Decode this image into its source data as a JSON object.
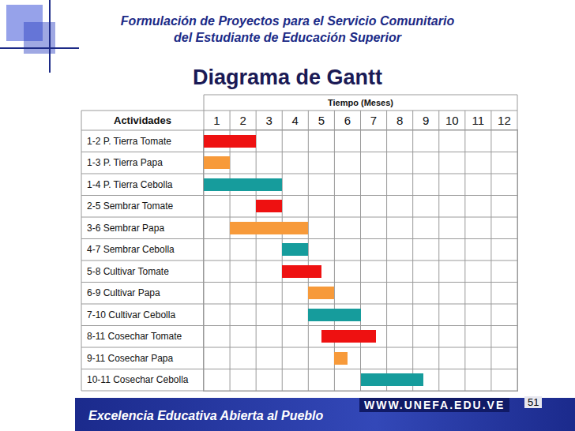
{
  "header": {
    "lines": [
      "Formulación de Proyectos para el Servicio Comunitario",
      "del Estudiante de Educación Superior"
    ]
  },
  "chart_data": {
    "type": "bar",
    "orientation": "horizontal",
    "title": "Diagrama de Gantt",
    "x_label": "Tiempo (Meses)",
    "category_header": "Actividades",
    "categories": [
      "1-2 P. Tierra Tomate",
      "1-3 P. Tierra Papa",
      "1-4 P. Tierra Cebolla",
      "2-5 Sembrar Tomate",
      "3-6 Sembrar Papa",
      "4-7 Sembrar Cebolla",
      "5-8 Cultivar Tomate",
      "6-9 Cultivar Papa",
      "7-10 Cultivar Cebolla",
      "8-11 Cosechar Tomate",
      "9-11 Cosechar Papa",
      "10-11 Cosechar Cebolla"
    ],
    "start": [
      0,
      0,
      0,
      2,
      1,
      3,
      3,
      4,
      4,
      4.5,
      5,
      6
    ],
    "end": [
      2,
      1,
      3,
      3,
      4,
      4,
      4.5,
      5,
      6,
      6.6,
      5.5,
      8.4
    ],
    "colors": [
      "#ee1111",
      "#f79a3a",
      "#169c9c",
      "#ee1111",
      "#f79a3a",
      "#169c9c",
      "#ee1111",
      "#f79a3a",
      "#169c9c",
      "#ee1111",
      "#f79a3a",
      "#169c9c"
    ],
    "xlim": [
      0,
      12
    ],
    "xticks": [
      {
        "value": 0.5,
        "label": "1"
      },
      {
        "value": 1.5,
        "label": "2"
      },
      {
        "value": 2.5,
        "label": "3"
      },
      {
        "value": 3.5,
        "label": "4"
      },
      {
        "value": 4.5,
        "label": "5"
      },
      {
        "value": 5.5,
        "label": "6"
      },
      {
        "value": 6.5,
        "label": "7"
      },
      {
        "value": 7.5,
        "label": "8"
      },
      {
        "value": 8.5,
        "label": "9"
      },
      {
        "value": 9.5,
        "label": "10"
      },
      {
        "value": 10.5,
        "label": "11"
      },
      {
        "value": 11.5,
        "label": "12"
      }
    ],
    "grid": true
  },
  "footer": {
    "motto": "Excelencia Educativa Abierta al Pueblo",
    "url": "WWW.UNEFA.EDU.VE",
    "page": 51
  }
}
